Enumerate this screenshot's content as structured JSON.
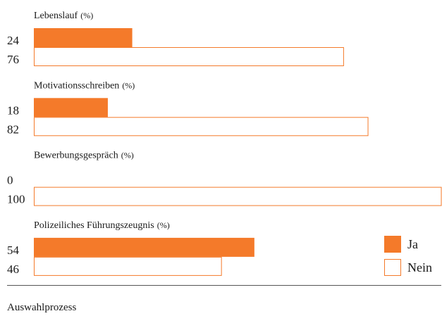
{
  "chart_data": {
    "type": "bar",
    "categories": [
      "Lebenslauf",
      "Motivationsschreiben",
      "Bewerbungsgespräch",
      "Polizeiliches Führungszeugnis"
    ],
    "unit_label": "(%)",
    "series": [
      {
        "name": "Ja",
        "color": "#f47a2a",
        "values": [
          24,
          18,
          0,
          54
        ]
      },
      {
        "name": "Nein",
        "color": "#ffffff",
        "values": [
          76,
          82,
          100,
          46
        ]
      }
    ],
    "outline_color": "#f47a2a",
    "xlim": [
      0,
      100
    ],
    "footer": "Auswahlprozess"
  }
}
